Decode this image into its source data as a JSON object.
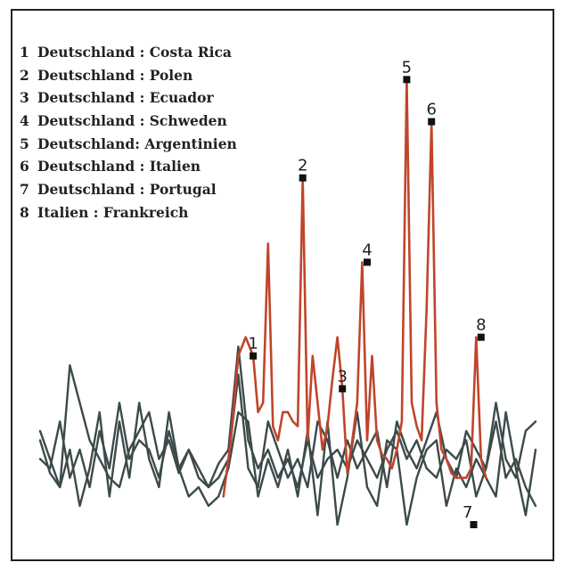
{
  "chart_data": {
    "type": "line",
    "legend": [
      {
        "num": "1",
        "label": "Deutschland : Costa Rica"
      },
      {
        "num": "2",
        "label": "Deutschland : Polen"
      },
      {
        "num": "3",
        "label": "Deutschland : Ecuador"
      },
      {
        "num": "4",
        "label": "Deutschland : Schweden"
      },
      {
        "num": "5",
        "label": "Deutschland: Argentinien"
      },
      {
        "num": "6",
        "label": "Deutschland : Italien"
      },
      {
        "num": "7",
        "label": "Deutschland : Portugal"
      },
      {
        "num": "8",
        "label": "Italien : Frankreich"
      }
    ],
    "x_range": [
      0,
      100
    ],
    "y_range": [
      0,
      100
    ],
    "grid": false,
    "colors": {
      "highlight": "#c0452a",
      "background_lines": "#3c4a4a",
      "marker": "#111111"
    },
    "series": [
      {
        "color": "#c0452a",
        "x": [
          37,
          38.5,
          40,
          41.5,
          43,
          44,
          45,
          46,
          47,
          48,
          49,
          50,
          51,
          52,
          53,
          54,
          55,
          56,
          57,
          58,
          59,
          60,
          61,
          62,
          63,
          64,
          65,
          66,
          67,
          68,
          69,
          70,
          71,
          72,
          73,
          74,
          75,
          76,
          77,
          78,
          79,
          80,
          81,
          82,
          83,
          84,
          85,
          86,
          87,
          88,
          89,
          90
        ],
        "y": [
          10,
          22,
          40,
          44,
          40,
          28,
          30,
          64,
          25,
          22,
          28,
          28,
          26,
          25,
          78,
          22,
          40,
          30,
          20,
          25,
          35,
          44,
          33,
          15,
          22,
          30,
          60,
          22,
          40,
          22,
          19,
          18,
          16,
          20,
          26,
          99,
          30,
          25,
          22,
          50,
          90,
          30,
          20,
          18,
          15,
          14,
          14,
          14,
          16,
          44,
          18,
          14
        ]
      },
      {
        "color": "#3c4a4a",
        "x": [
          0,
          2,
          4,
          6,
          8,
          10,
          12,
          14,
          16,
          18,
          20,
          22,
          24,
          26,
          28,
          30,
          32,
          34,
          36,
          38,
          40,
          42,
          44,
          46,
          48,
          50,
          52,
          54,
          56,
          58,
          60,
          62,
          64,
          66,
          68,
          70,
          72,
          74,
          76,
          78,
          80,
          82,
          84,
          86,
          88,
          90,
          92,
          94,
          96,
          98,
          100
        ],
        "y": [
          22,
          15,
          12,
          38,
          30,
          22,
          18,
          14,
          12,
          20,
          24,
          28,
          18,
          22,
          15,
          20,
          14,
          12,
          17,
          20,
          42,
          22,
          16,
          20,
          14,
          18,
          12,
          22,
          14,
          18,
          20,
          16,
          22,
          18,
          14,
          20,
          24,
          18,
          22,
          16,
          14,
          20,
          18,
          22,
          10,
          16,
          26,
          14,
          18,
          12,
          8
        ]
      },
      {
        "color": "#3c4a4a",
        "x": [
          0,
          2,
          4,
          6,
          8,
          10,
          12,
          14,
          16,
          18,
          20,
          22,
          24,
          26,
          28,
          30,
          32,
          34,
          36,
          38,
          40,
          42,
          44,
          46,
          48,
          50,
          52,
          54,
          56,
          58,
          60,
          62,
          64,
          66,
          68,
          70,
          72,
          74,
          76,
          78,
          80,
          82,
          84,
          86,
          88,
          90,
          92,
          94,
          96,
          98,
          100
        ],
        "y": [
          24,
          18,
          12,
          20,
          8,
          16,
          28,
          10,
          26,
          14,
          30,
          18,
          12,
          28,
          16,
          10,
          12,
          8,
          10,
          16,
          28,
          26,
          10,
          18,
          12,
          20,
          10,
          24,
          6,
          26,
          4,
          14,
          28,
          12,
          8,
          22,
          20,
          4,
          14,
          20,
          22,
          8,
          16,
          12,
          18,
          14,
          10,
          28,
          16,
          6,
          20
        ]
      },
      {
        "color": "#3c4a4a",
        "x": [
          0,
          2,
          4,
          6,
          8,
          10,
          12,
          14,
          16,
          18,
          20,
          22,
          24,
          26,
          28,
          30,
          32,
          34,
          36,
          38,
          40,
          42,
          44,
          46,
          48,
          50,
          52,
          54,
          56,
          58,
          60,
          62,
          64,
          66,
          68,
          70,
          72,
          74,
          76,
          78,
          80,
          82,
          84,
          86,
          88,
          90,
          92,
          94,
          96,
          98,
          100
        ],
        "y": [
          18,
          16,
          26,
          14,
          20,
          12,
          24,
          16,
          30,
          18,
          22,
          20,
          14,
          24,
          16,
          20,
          16,
          12,
          14,
          18,
          36,
          16,
          12,
          26,
          20,
          14,
          18,
          12,
          26,
          22,
          14,
          22,
          16,
          20,
          24,
          12,
          26,
          20,
          16,
          22,
          28,
          18,
          14,
          24,
          20,
          16,
          30,
          18,
          14,
          24,
          26
        ]
      }
    ],
    "markers": [
      {
        "label": "1",
        "x": 43,
        "y": 40
      },
      {
        "label": "2",
        "x": 53,
        "y": 78
      },
      {
        "label": "3",
        "x": 61,
        "y": 33
      },
      {
        "label": "4",
        "x": 66,
        "y": 60
      },
      {
        "label": "5",
        "x": 74,
        "y": 99
      },
      {
        "label": "6",
        "x": 79,
        "y": 90
      },
      {
        "label": "7",
        "x": 87.5,
        "y": 4
      },
      {
        "label": "8",
        "x": 89,
        "y": 44
      }
    ]
  }
}
